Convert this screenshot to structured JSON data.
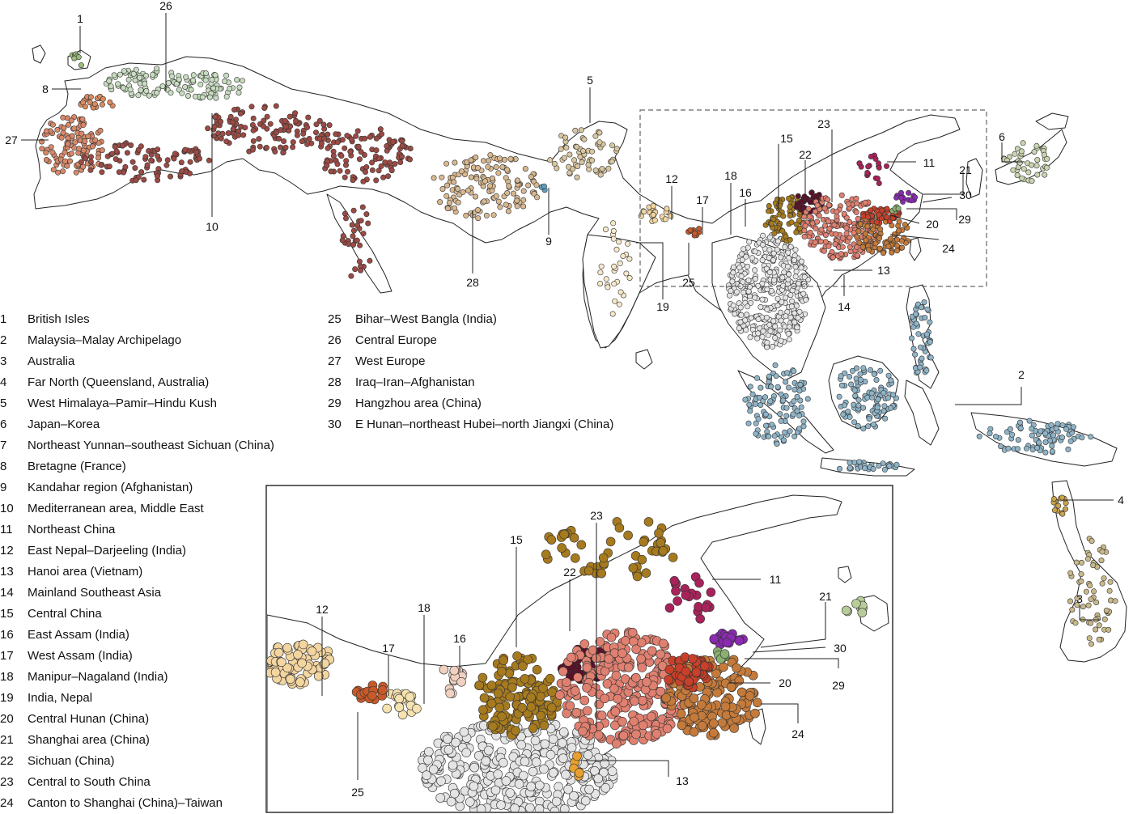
{
  "legend": [
    {
      "id": "1",
      "label": "British Isles",
      "color": "#9bbd7a"
    },
    {
      "id": "2",
      "label": "Malaysia–Malay Archipelago",
      "color": "#8fb4c8"
    },
    {
      "id": "3",
      "label": "Australia",
      "color": "#c9b98a"
    },
    {
      "id": "4",
      "label": "Far North (Queensland, Australia)",
      "color": "#c9a24a"
    },
    {
      "id": "5",
      "label": "West Himalaya–Pamir–Hindu Kush",
      "color": "#d8c6a0"
    },
    {
      "id": "6",
      "label": "Japan–Korea",
      "color": "#c8d4b0"
    },
    {
      "id": "7",
      "label": "Northeast Yunnan–southeast Sichuan (China)",
      "color": "#a05050"
    },
    {
      "id": "8",
      "label": "Bretagne (France)",
      "color": "#d98a60"
    },
    {
      "id": "9",
      "label": "Kandahar region (Afghanistan)",
      "color": "#5fa0c0"
    },
    {
      "id": "10",
      "label": "Mediterranean area, Middle East",
      "color": "#9c4a44"
    },
    {
      "id": "11",
      "label": "Northeast China",
      "color": "#a8235a"
    },
    {
      "id": "12",
      "label": "East Nepal–Darjeeling (India)",
      "color": "#f3d5a0"
    },
    {
      "id": "13",
      "label": "Hanoi area (Vietnam)",
      "color": "#e8a030"
    },
    {
      "id": "14",
      "label": "Mainland Southeast Asia",
      "color": "#e4e4e4"
    },
    {
      "id": "15",
      "label": "Central China",
      "color": "#a67a1e"
    },
    {
      "id": "16",
      "label": "East Assam (India)",
      "color": "#f0d0c0"
    },
    {
      "id": "17",
      "label": "West Assam (India)",
      "color": "#c85a2a"
    },
    {
      "id": "18",
      "label": "Manipur–Nagaland (India)",
      "color": "#f5e2b0"
    },
    {
      "id": "19",
      "label": "India, Nepal",
      "color": "#f6e8c8"
    },
    {
      "id": "20",
      "label": "Central Hunan (China)",
      "color": "#c8402a"
    },
    {
      "id": "21",
      "label": "Shanghai area (China)",
      "color": "#b8cc9a"
    },
    {
      "id": "22",
      "label": "Sichuan (China)",
      "color": "#5a1028"
    },
    {
      "id": "23",
      "label": "Central to South China",
      "color": "#e08070"
    },
    {
      "id": "24",
      "label": "Canton to Shanghai (China)–Taiwan",
      "color": "#c47a3a"
    },
    {
      "id": "25",
      "label": "Bihar–West Bangla (India)",
      "color": "#f0c890"
    },
    {
      "id": "26",
      "label": "Central Europe",
      "color": "#c8dcc0"
    },
    {
      "id": "27",
      "label": "West Europe",
      "color": "#d8886a"
    },
    {
      "id": "28",
      "label": "Iraq–Iran–Afghanistan",
      "color": "#d8b890"
    },
    {
      "id": "29",
      "label": "Hangzhou area (China)",
      "color": "#8ab070"
    },
    {
      "id": "30",
      "label": "E Hunan–northeast Hubei–north Jiangxi (China)",
      "color": "#8a2ab0"
    }
  ],
  "main_labels": [
    "1",
    "26",
    "8",
    "27",
    "10",
    "5",
    "28",
    "9",
    "19",
    "12",
    "17",
    "25",
    "18",
    "16",
    "15",
    "22",
    "23",
    "11",
    "21",
    "30",
    "6",
    "29",
    "20",
    "24",
    "13",
    "14",
    "2",
    "4",
    "3"
  ],
  "inset_labels": [
    "12",
    "17",
    "18",
    "16",
    "15",
    "22",
    "23",
    "11",
    "21",
    "30",
    "29",
    "20",
    "24",
    "13",
    "25"
  ]
}
